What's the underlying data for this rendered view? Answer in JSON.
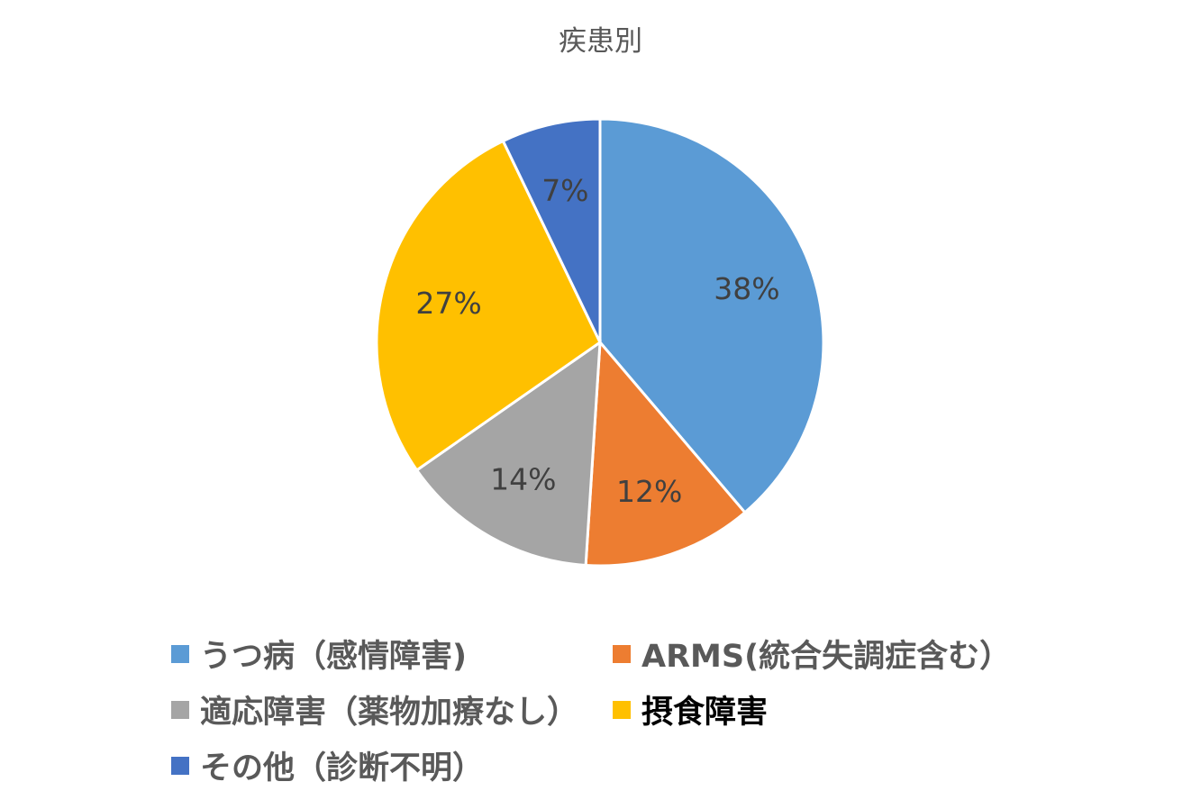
{
  "chart_data": {
    "type": "pie",
    "title": "疾患別",
    "categories": [
      "うつ病（感情障害)",
      "ARMS(統合失調症含む）",
      "適応障害（薬物加療なし）",
      "摂食障害",
      "その他（診断不明）"
    ],
    "values": [
      38,
      12,
      14,
      27,
      7
    ],
    "data_labels": [
      "38%",
      "12%",
      "14%",
      "27%",
      "7%"
    ],
    "colors": [
      "#5B9BD5",
      "#ED7D31",
      "#A5A5A5",
      "#FFC000",
      "#4472C4"
    ],
    "legend_position": "bottom"
  }
}
